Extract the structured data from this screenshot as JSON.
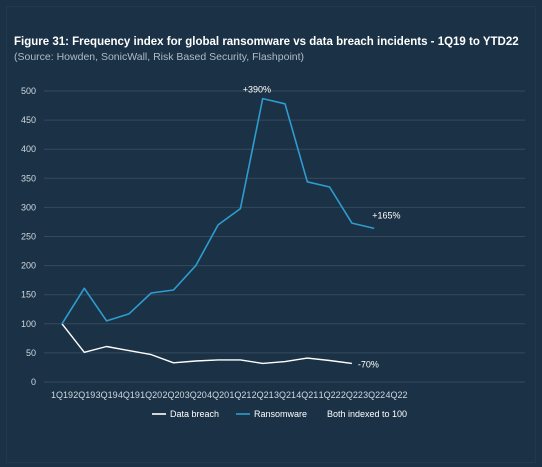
{
  "chart_data": {
    "type": "line",
    "title": "Figure 31: Frequency index for global ransomware vs data breach incidents - 1Q19 to YTD22",
    "subtitle": "(Source: Howden, SonicWall, Risk Based Security, Flashpoint)",
    "categories": [
      "1Q19",
      "2Q19",
      "3Q19",
      "4Q19",
      "1Q20",
      "2Q20",
      "3Q20",
      "4Q20",
      "1Q21",
      "2Q21",
      "3Q21",
      "4Q21",
      "1Q22",
      "2Q22",
      "3Q22",
      "4Q22"
    ],
    "ylim": [
      0,
      500
    ],
    "yticks": [
      0,
      50,
      100,
      150,
      200,
      250,
      300,
      350,
      400,
      450,
      500
    ],
    "grid": true,
    "legend_position": "bottom",
    "series": [
      {
        "name": "Data breach",
        "color": "#ffffff",
        "values": [
          100,
          51,
          61,
          54,
          47,
          33,
          36,
          38,
          38,
          32,
          35,
          41,
          37,
          32,
          null,
          null
        ]
      },
      {
        "name": "Ransomware",
        "color": "#2e9ccf",
        "values": [
          100,
          161,
          105,
          117,
          153,
          158,
          200,
          270,
          298,
          487,
          478,
          344,
          335,
          273,
          264,
          null
        ]
      }
    ],
    "extra_legend_text": "Both indexed to 100",
    "annotations": [
      {
        "text": "+390%",
        "series": 1,
        "index": 9
      },
      {
        "text": "+165%",
        "series": 1,
        "index": 14
      },
      {
        "text": "-70%",
        "series": 0,
        "index": 13
      }
    ]
  }
}
